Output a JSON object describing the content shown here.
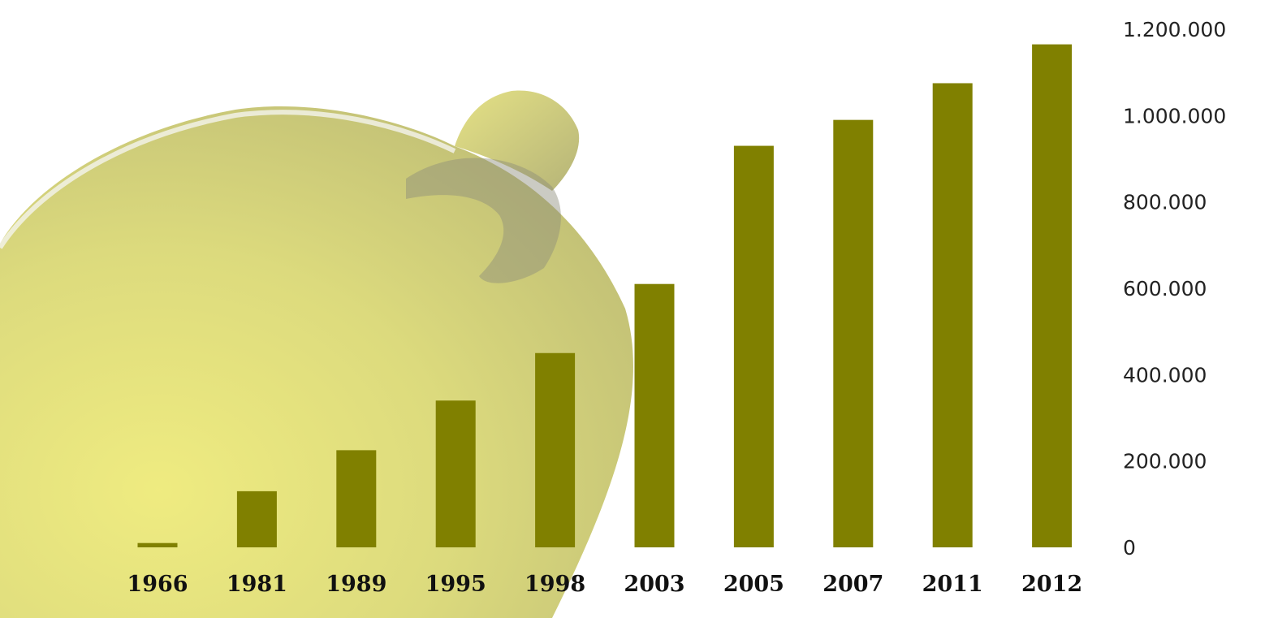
{
  "colors": {
    "bar": "#808000",
    "background": "#ffffff",
    "bottle_light": "#ece86a",
    "bottle_mid": "#c9c75e",
    "bottle_shadow": "#8b8b7a"
  },
  "chart_data": {
    "type": "bar",
    "title": "",
    "xlabel": "",
    "ylabel": "",
    "categories": [
      "1966",
      "1981",
      "1989",
      "1995",
      "1998",
      "2003",
      "2005",
      "2007",
      "2011",
      "2012"
    ],
    "values": [
      10000,
      130000,
      225000,
      340000,
      450000,
      610000,
      930000,
      990000,
      1075000,
      1165000
    ],
    "ylim": [
      0,
      1200000
    ],
    "y_ticks": [
      0,
      200000,
      400000,
      600000,
      800000,
      1000000,
      1200000
    ],
    "y_tick_labels": [
      "0",
      "200.000",
      "400.000",
      "600.000",
      "800.000",
      "1.000.000",
      "1.200.000"
    ],
    "y_axis_side": "right",
    "grid": false,
    "legend": "none",
    "background_image": "olive-oil-bottle"
  }
}
